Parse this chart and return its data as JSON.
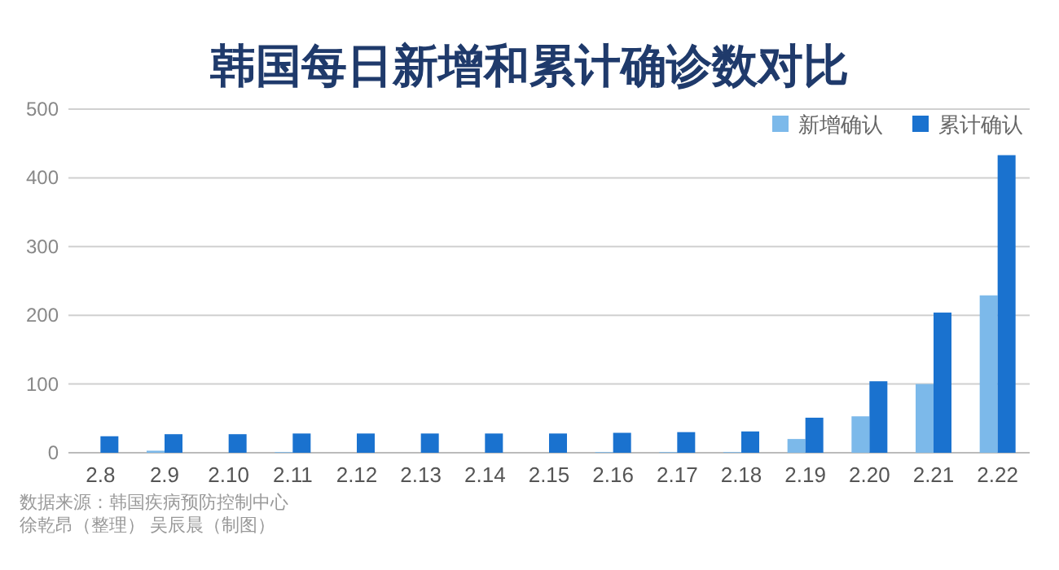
{
  "chart_data": {
    "type": "bar",
    "title": "韩国每日新增和累计确诊数对比",
    "categories": [
      "2.8",
      "2.9",
      "2.10",
      "2.11",
      "2.12",
      "2.13",
      "2.14",
      "2.15",
      "2.16",
      "2.17",
      "2.18",
      "2.19",
      "2.20",
      "2.21",
      "2.22"
    ],
    "series": [
      {
        "name": "新增确认",
        "color": "#7cb9ea",
        "values": [
          0,
          3,
          0,
          1,
          0,
          0,
          0,
          0,
          1,
          1,
          1,
          20,
          53,
          100,
          229
        ]
      },
      {
        "name": "累计确认",
        "color": "#1a72cf",
        "values": [
          24,
          27,
          27,
          28,
          28,
          28,
          28,
          28,
          29,
          30,
          31,
          51,
          104,
          204,
          433
        ]
      }
    ],
    "ylim": [
      0,
      500
    ],
    "yticks": [
      0,
      100,
      200,
      300,
      400,
      500
    ],
    "grid": "y",
    "legend": "top right",
    "annotations": [
      "数据来源：韩国疾病预防控制中心",
      "徐乾昂（整理） 吴辰晨（制图）"
    ]
  }
}
